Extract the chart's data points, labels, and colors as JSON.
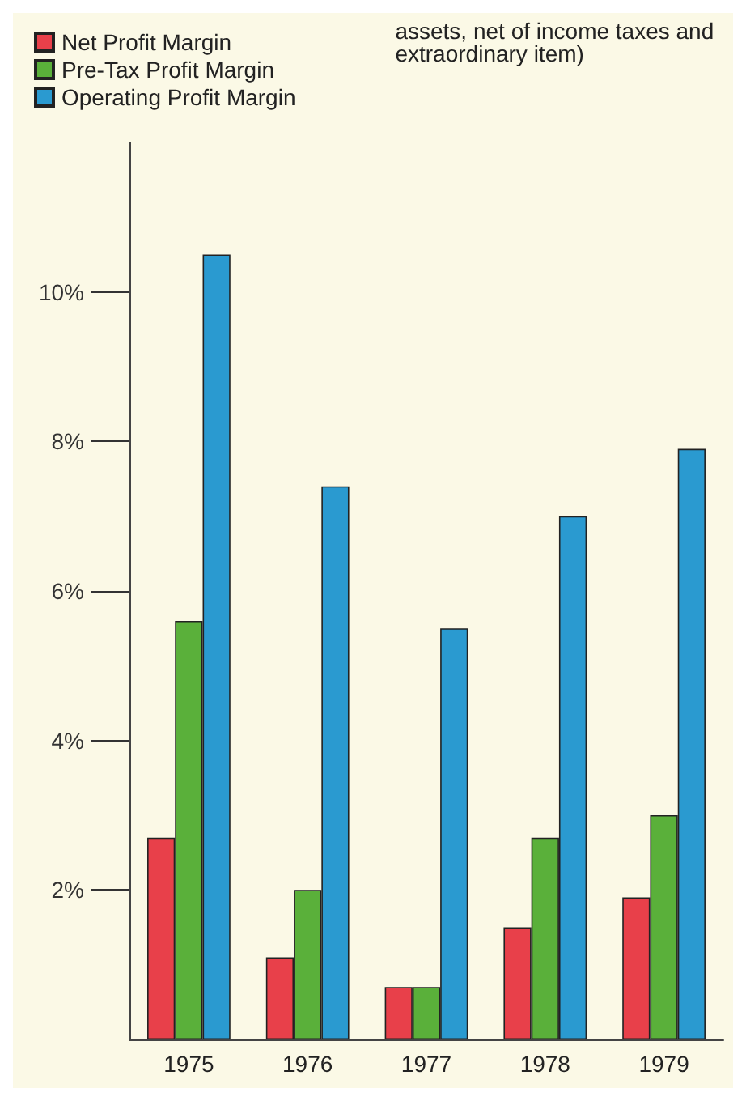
{
  "chart_data": {
    "type": "bar",
    "annotations": [
      "assets, net of income taxes and extraordinary item)"
    ],
    "categories": [
      "1975",
      "1976",
      "1977",
      "1978",
      "1979"
    ],
    "series": [
      {
        "name": "Net Profit Margin",
        "color": "#e8404a",
        "values": [
          2.7,
          1.1,
          0.7,
          1.5,
          1.9
        ]
      },
      {
        "name": "Pre-Tax Profit Margin",
        "color": "#5ab03a",
        "values": [
          5.6,
          2.0,
          0.7,
          2.7,
          3.0
        ]
      },
      {
        "name": "Operating Profit Margin",
        "color": "#2a9ad0",
        "values": [
          10.5,
          7.4,
          5.5,
          7.0,
          7.9
        ]
      }
    ],
    "ylim": [
      0,
      12
    ],
    "yticks": [
      {
        "value": 2,
        "label": "2%"
      },
      {
        "value": 4,
        "label": "4%"
      },
      {
        "value": 6,
        "label": "6%"
      },
      {
        "value": 8,
        "label": "8%"
      },
      {
        "value": 10,
        "label": "10%"
      }
    ],
    "grid": false,
    "legend": "top left"
  }
}
